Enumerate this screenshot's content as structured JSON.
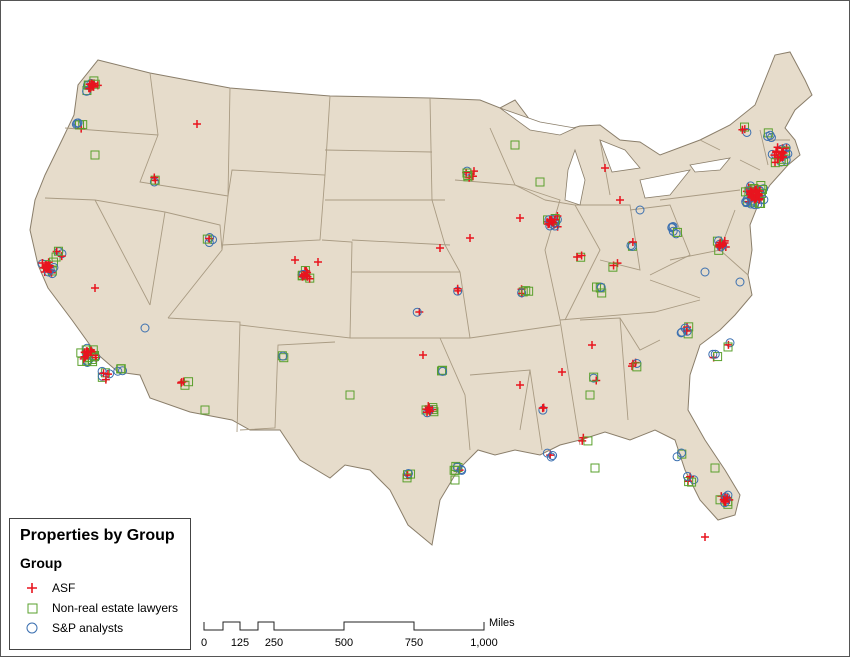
{
  "legend": {
    "title": "Properties by Group",
    "group_heading": "Group",
    "items": [
      {
        "label": "ASF",
        "symbol": "cross",
        "color": "#e8141e"
      },
      {
        "label": "Non-real estate lawyers",
        "symbol": "square",
        "color": "#5aa02c"
      },
      {
        "label": "S&P analysts",
        "symbol": "circle",
        "color": "#3a6fb0"
      }
    ]
  },
  "scale_bar": {
    "unit": "Miles",
    "ticks": [
      "0",
      "125",
      "250",
      "500",
      "750",
      "1,000"
    ]
  },
  "colors": {
    "land": "#e6dccb",
    "border": "#a99b83",
    "background": "#ffffff"
  }
}
